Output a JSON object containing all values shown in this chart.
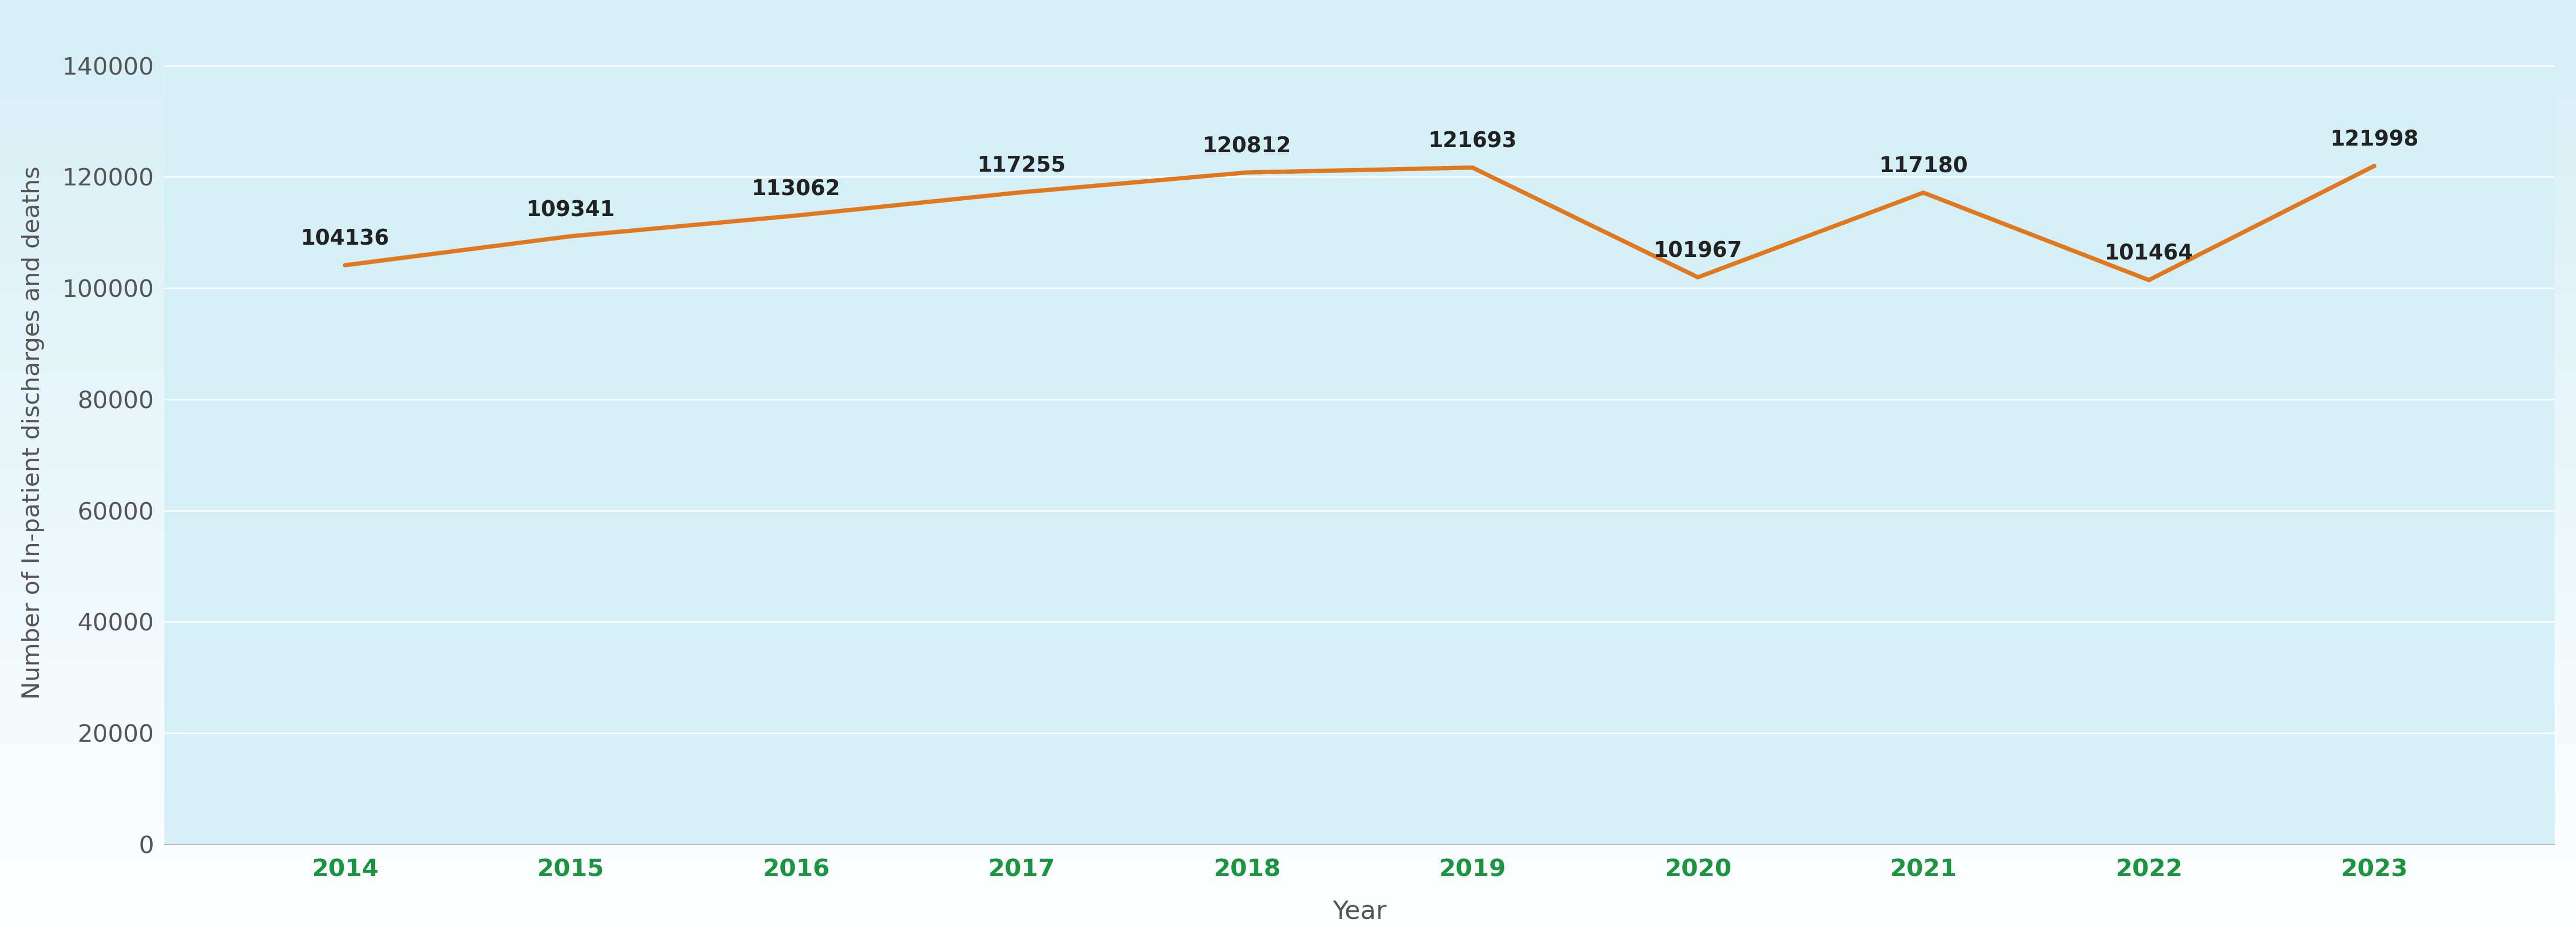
{
  "years": [
    2014,
    2015,
    2016,
    2017,
    2018,
    2019,
    2020,
    2021,
    2022,
    2023
  ],
  "values": [
    104136,
    109341,
    113062,
    117255,
    120812,
    121693,
    101967,
    117180,
    101464,
    121998
  ],
  "line_color": "#E07820",
  "xlabel": "Year",
  "ylabel": "Number of In-patient discharges and deaths",
  "xlabel_fontsize": 36,
  "ylabel_fontsize": 34,
  "tick_label_color_x": "#1a9641",
  "tick_label_color_y": "#555555",
  "tick_fontsize": 34,
  "annotation_fontsize": 30,
  "ylim": [
    0,
    148000
  ],
  "yticks": [
    0,
    20000,
    40000,
    60000,
    80000,
    100000,
    120000,
    140000
  ],
  "plot_bg_color": "#d4eff5",
  "outer_bg_top": "#d4eff5",
  "outer_bg_bottom": "#ffffff",
  "grid_color": "#ffffff",
  "spine_color": "#bbbbbb",
  "label_color": "#555555"
}
